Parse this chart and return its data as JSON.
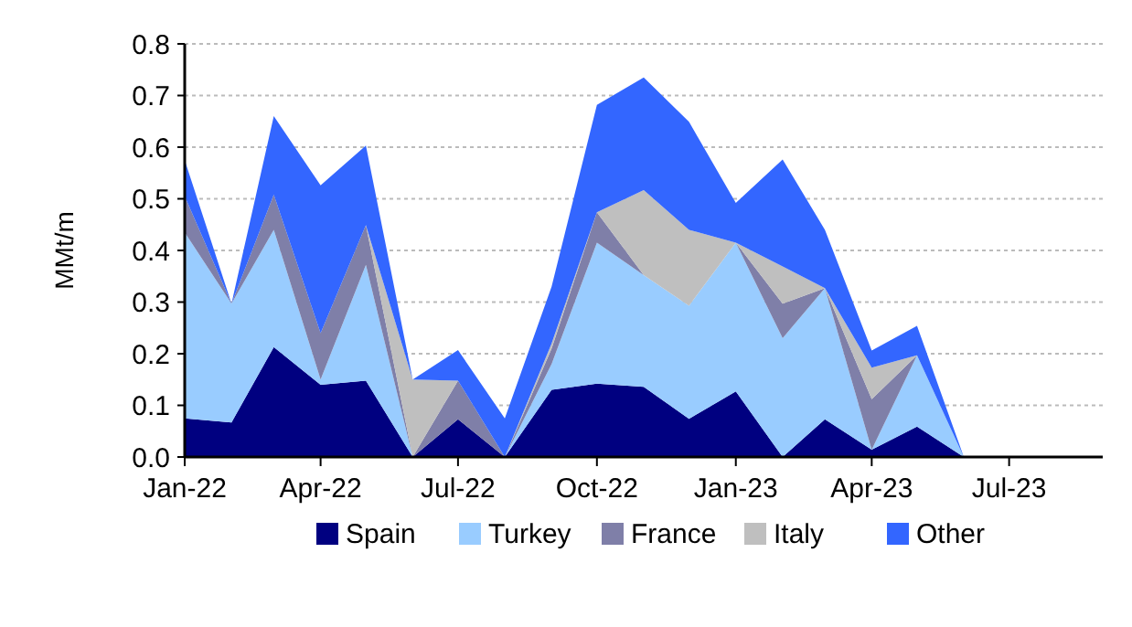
{
  "chart_data": {
    "type": "area",
    "stacked": true,
    "ylabel": "MMt/m",
    "x": [
      "2022-01",
      "2022-02",
      "2022-03",
      "2022-04",
      "2022-05",
      "2022-06",
      "2022-07",
      "2022-08",
      "2022-09",
      "2022-10",
      "2022-11",
      "2022-12",
      "2023-01",
      "2023-02",
      "2023-03",
      "2023-04",
      "2023-05",
      "2023-06"
    ],
    "series": [
      {
        "name": "Spain",
        "color": "#000080",
        "values": [
          0.075,
          0.067,
          0.213,
          0.14,
          0.148,
          0,
          0.073,
          0,
          0.13,
          0.142,
          0.136,
          0.074,
          0.127,
          0,
          0.073,
          0.014,
          0.059,
          0
        ]
      },
      {
        "name": "Turkey",
        "color": "#99ccff",
        "values": [
          0.36,
          0.23,
          0.227,
          0.01,
          0.224,
          0,
          0,
          0,
          0.05,
          0.273,
          0.216,
          0.219,
          0.288,
          0.23,
          0.254,
          0,
          0.138,
          0
        ]
      },
      {
        "name": "France",
        "color": "#7f7fa8",
        "values": [
          0.07,
          0,
          0.068,
          0.09,
          0.077,
          0,
          0.075,
          0,
          0.03,
          0.059,
          0,
          0,
          0,
          0.067,
          0,
          0.098,
          0,
          0
        ]
      },
      {
        "name": "Italy",
        "color": "#bfbfbf",
        "values": [
          0,
          0,
          0,
          0,
          0,
          0.15,
          0,
          0,
          0.01,
          0,
          0.165,
          0.147,
          0,
          0.072,
          0,
          0.061,
          0,
          0
        ]
      },
      {
        "name": "Other",
        "color": "#3366ff",
        "values": [
          0.07,
          0,
          0.152,
          0.286,
          0.154,
          0,
          0.059,
          0.075,
          0.11,
          0.208,
          0.218,
          0.209,
          0.077,
          0.207,
          0.113,
          0.033,
          0.057,
          0
        ]
      }
    ],
    "xlim": [
      "2022-01",
      "2023-09"
    ],
    "xticks": [
      {
        "value": "2022-01",
        "label": "Jan-22"
      },
      {
        "value": "2022-04",
        "label": "Apr-22"
      },
      {
        "value": "2022-07",
        "label": "Jul-22"
      },
      {
        "value": "2022-10",
        "label": "Oct-22"
      },
      {
        "value": "2023-01",
        "label": "Jan-23"
      },
      {
        "value": "2023-04",
        "label": "Apr-23"
      },
      {
        "value": "2023-07",
        "label": "Jul-23"
      }
    ],
    "ylim": [
      0,
      0.8
    ],
    "yticks": [
      {
        "value": 0,
        "label": "0.0"
      },
      {
        "value": 0.1,
        "label": "0.1"
      },
      {
        "value": 0.2,
        "label": "0.2"
      },
      {
        "value": 0.3,
        "label": "0.3"
      },
      {
        "value": 0.4,
        "label": "0.4"
      },
      {
        "value": 0.5,
        "label": "0.5"
      },
      {
        "value": 0.6,
        "label": "0.6"
      },
      {
        "value": 0.7,
        "label": "0.7"
      },
      {
        "value": 0.8,
        "label": "0.8"
      }
    ],
    "grid": "y",
    "legend": "bottom"
  }
}
